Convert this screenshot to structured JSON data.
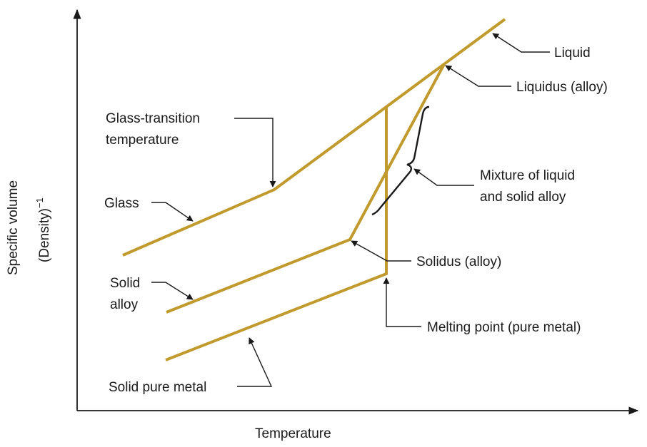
{
  "axes": {
    "x_label": "Temperature",
    "y_label": "Specific volume",
    "y_label_secondary": "(Density)",
    "y_label_secondary_exponent": "−1"
  },
  "labels": {
    "liquid": "Liquid",
    "liquidus": "Liquidus (alloy)",
    "glass_transition_line1": "Glass-transition",
    "glass_transition_line2": "temperature",
    "mixture_line1": "Mixture of liquid",
    "mixture_line2": "and solid alloy",
    "glass": "Glass",
    "solidus": "Solidus (alloy)",
    "solid_alloy_line1": "Solid",
    "solid_alloy_line2": "alloy",
    "melting_point": "Melting point (pure metal)",
    "solid_pure_metal": "Solid pure metal"
  },
  "colors": {
    "curve": "#c19a2e",
    "ink": "#1a1a1a"
  }
}
